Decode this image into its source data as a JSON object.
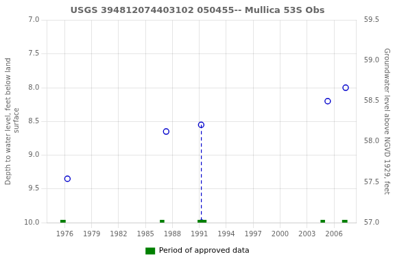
{
  "chart_data": {
    "type": "scatter",
    "title": "USGS 394812074403102 050455-- Mullica 53S Obs",
    "ylabel": "Depth to water level, feet below land\n surface",
    "y2label": "Groundwater level above NGVD 1929, feet",
    "xlim": [
      1974.0,
      2008.5
    ],
    "xticks": [
      1976,
      1979,
      1982,
      1985,
      1988,
      1991,
      1994,
      1997,
      2000,
      2003,
      2006
    ],
    "ylim": [
      10.0,
      7.0
    ],
    "yticks": [
      {
        "value": 7,
        "label": "7.0"
      },
      7.5,
      {
        "value": 8,
        "label": "8.0"
      },
      8.5,
      {
        "value": 9,
        "label": "9.0"
      },
      9.5,
      {
        "value": 10,
        "label": "10.0"
      }
    ],
    "y2lim": [
      57.0,
      59.5
    ],
    "y2ticks": [
      {
        "value": 57,
        "label": "57.0"
      },
      57.5,
      {
        "value": 58,
        "label": "58.0"
      },
      58.5,
      {
        "value": 59,
        "label": "59.0"
      },
      59.5
    ],
    "grid": true,
    "legend": "bottom",
    "series": [
      {
        "type": "scatter",
        "marker": "open_circle",
        "color": "#0000cc",
        "x": [
          1976.3,
          1987.3,
          1991.2,
          1991.25,
          2005.3,
          2007.3
        ],
        "values": [
          9.35,
          8.65,
          8.55,
          10.0,
          8.2,
          8.0
        ]
      },
      {
        "type": "line",
        "line_style": "dashed",
        "color": "#0000cc",
        "x": [
          1991.22,
          1991.22
        ],
        "values": [
          8.55,
          10.0
        ]
      },
      {
        "type": "bar",
        "name": "Period of approved data",
        "color": "#008000",
        "x_start": [
          1975.5,
          1986.6,
          1990.8,
          2004.5,
          2006.9
        ],
        "x_end": [
          1976.1,
          1987.1,
          1991.8,
          2005.0,
          2007.5
        ]
      }
    ]
  }
}
